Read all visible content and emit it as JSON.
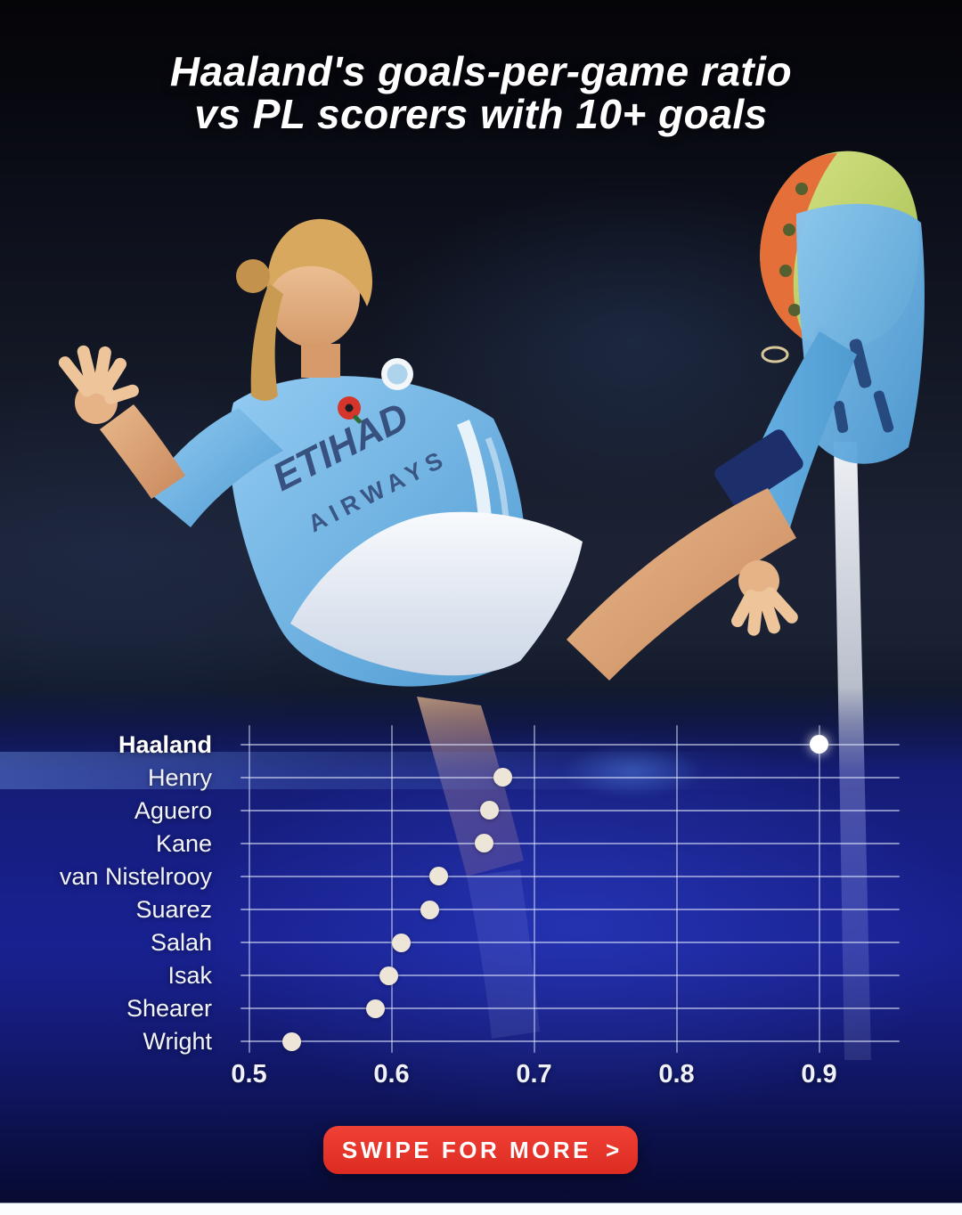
{
  "title": {
    "line1": "Haaland's goals-per-game ratio",
    "line2": "vs PL scorers with 10+ goals"
  },
  "hero": {
    "shirt_text_line1": "ETIHAD",
    "shirt_text_line2": "AIRWAYS"
  },
  "chart_data": {
    "type": "scatter",
    "orientation": "horizontal-dot-plot",
    "categories": [
      "Haaland",
      "Henry",
      "Aguero",
      "Kane",
      "van Nistelrooy",
      "Suarez",
      "Salah",
      "Isak",
      "Shearer",
      "Wright"
    ],
    "values": [
      0.9,
      0.678,
      0.669,
      0.665,
      0.633,
      0.627,
      0.607,
      0.598,
      0.589,
      0.53
    ],
    "highlight_category": "Haaland",
    "xticks": [
      0.5,
      0.6,
      0.7,
      0.8,
      0.9
    ],
    "xlim": [
      0.5,
      0.956
    ],
    "xlabel": "",
    "ylabel": "",
    "grid": true,
    "legend": false,
    "colors": {
      "dot": "#ece5d8",
      "dot_highlight": "#ffffff",
      "gridline": "rgba(226,233,252,0.55)",
      "label": "#f2f4fa"
    }
  },
  "button": {
    "label": "SWIPE FOR MORE",
    "arrow": ">"
  },
  "colors": {
    "accent_red": "#e2342a",
    "chart_blue": "#19227e",
    "kit_sky_blue": "#7fc0ec",
    "background_top": "#050508"
  }
}
